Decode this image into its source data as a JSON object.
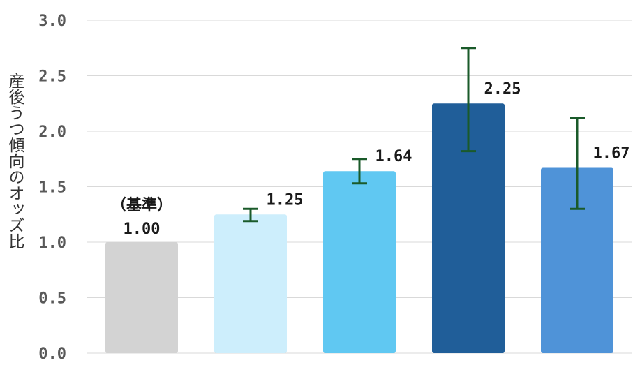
{
  "chart_data": {
    "type": "bar",
    "title": "",
    "xlabel": "",
    "ylabel": "産後うつ傾向のオッズ比",
    "ylim": [
      0,
      3.0
    ],
    "yticks": [
      "0.0",
      "0.5",
      "1.0",
      "1.5",
      "2.0",
      "2.5",
      "3.0"
    ],
    "grid": true,
    "legend": "none",
    "categories": [
      "",
      "",
      "",
      "",
      ""
    ],
    "values": [
      1.0,
      1.25,
      1.64,
      2.25,
      1.67
    ],
    "data_labels": [
      "1.00",
      "1.25",
      "1.64",
      "2.25",
      "1.67"
    ],
    "reference_note": "（基準）",
    "error_bars": [
      null,
      {
        "low": 1.19,
        "high": 1.3
      },
      {
        "low": 1.53,
        "high": 1.75
      },
      {
        "low": 1.82,
        "high": 2.75
      },
      {
        "low": 1.3,
        "high": 2.12
      }
    ],
    "colors": [
      "#d3d3d3",
      "#cdeefc",
      "#60c8f2",
      "#205e99",
      "#4f93d8"
    ],
    "error_bar_color": "#1a5a2a",
    "grid_color": "#d9d9d9"
  }
}
